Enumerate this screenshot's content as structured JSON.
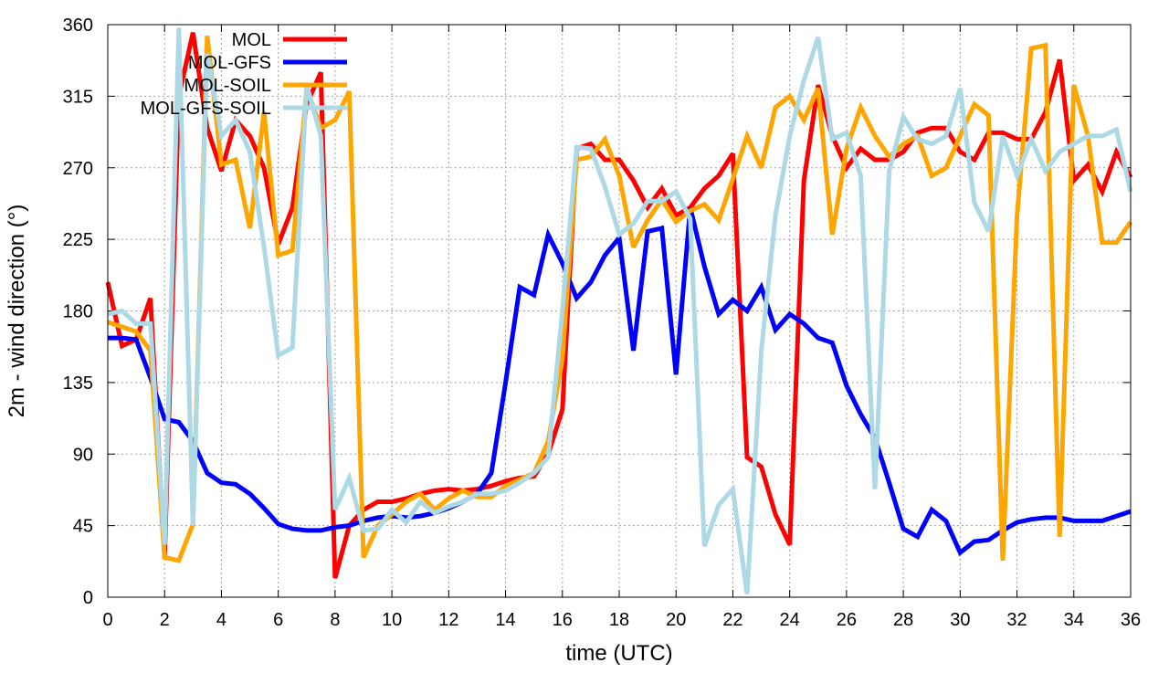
{
  "chart_data": {
    "type": "line",
    "title": "",
    "xlabel": "time (UTC)",
    "ylabel": "2m - wind direction (°)",
    "xlim": [
      0,
      36
    ],
    "ylim": [
      0,
      360
    ],
    "xticks": [
      0,
      2,
      4,
      6,
      8,
      10,
      12,
      14,
      16,
      18,
      20,
      22,
      24,
      26,
      28,
      30,
      32,
      34,
      36
    ],
    "yticks": [
      0,
      45,
      90,
      135,
      180,
      225,
      270,
      315,
      360
    ],
    "grid": true,
    "legend_position": "top-left",
    "series": [
      {
        "name": "MOL",
        "color": "#ff0000",
        "points": [
          [
            0,
            198
          ],
          [
            0.5,
            158
          ],
          [
            1,
            162
          ],
          [
            1.5,
            188
          ],
          [
            2,
            25
          ],
          [
            2.5,
            315
          ],
          [
            3,
            355
          ],
          [
            3.5,
            295
          ],
          [
            4,
            268
          ],
          [
            4.5,
            300
          ],
          [
            5,
            290
          ],
          [
            5.5,
            270
          ],
          [
            6,
            222
          ],
          [
            6.5,
            245
          ],
          [
            7,
            310
          ],
          [
            7.5,
            330
          ],
          [
            8,
            12
          ],
          [
            8.5,
            45
          ],
          [
            9,
            55
          ],
          [
            9.5,
            60
          ],
          [
            10,
            60
          ],
          [
            10.5,
            62
          ],
          [
            11,
            65
          ],
          [
            11.5,
            67
          ],
          [
            12,
            68
          ],
          [
            12.5,
            67
          ],
          [
            13,
            68
          ],
          [
            13.5,
            70
          ],
          [
            14,
            73
          ],
          [
            14.5,
            75
          ],
          [
            15,
            76
          ],
          [
            15.5,
            90
          ],
          [
            16,
            118
          ],
          [
            16.5,
            282
          ],
          [
            17,
            285
          ],
          [
            17.5,
            275
          ],
          [
            18,
            275
          ],
          [
            18.5,
            262
          ],
          [
            19,
            245
          ],
          [
            19.5,
            257
          ],
          [
            20,
            240
          ],
          [
            20.5,
            245
          ],
          [
            21,
            257
          ],
          [
            21.5,
            265
          ],
          [
            22,
            279
          ],
          [
            22.5,
            88
          ],
          [
            23,
            82
          ],
          [
            23.5,
            52
          ],
          [
            24,
            33
          ],
          [
            24.5,
            262
          ],
          [
            25,
            322
          ],
          [
            25.5,
            290
          ],
          [
            26,
            270
          ],
          [
            26.5,
            282
          ],
          [
            27,
            275
          ],
          [
            27.5,
            275
          ],
          [
            28,
            280
          ],
          [
            28.5,
            292
          ],
          [
            29,
            295
          ],
          [
            29.5,
            295
          ],
          [
            30,
            280
          ],
          [
            30.5,
            275
          ],
          [
            31,
            292
          ],
          [
            31.5,
            292
          ],
          [
            32,
            288
          ],
          [
            32.5,
            288
          ],
          [
            33,
            305
          ],
          [
            33.5,
            338
          ],
          [
            34,
            262
          ],
          [
            34.5,
            272
          ],
          [
            35,
            255
          ],
          [
            35.5,
            280
          ],
          [
            36,
            264
          ]
        ]
      },
      {
        "name": "MOL-GFS",
        "color": "#0000ff",
        "points": [
          [
            0,
            163
          ],
          [
            0.5,
            163
          ],
          [
            1,
            162
          ],
          [
            1.5,
            138
          ],
          [
            2,
            112
          ],
          [
            2.5,
            110
          ],
          [
            3,
            98
          ],
          [
            3.5,
            78
          ],
          [
            4,
            72
          ],
          [
            4.5,
            71
          ],
          [
            5,
            65
          ],
          [
            5.5,
            56
          ],
          [
            6,
            46
          ],
          [
            6.5,
            43
          ],
          [
            7,
            42
          ],
          [
            7.5,
            42
          ],
          [
            8,
            44
          ],
          [
            8.5,
            45
          ],
          [
            9,
            48
          ],
          [
            9.5,
            50
          ],
          [
            10,
            51
          ],
          [
            10.5,
            50
          ],
          [
            11,
            51
          ],
          [
            11.5,
            53
          ],
          [
            12,
            56
          ],
          [
            12.5,
            60
          ],
          [
            13,
            65
          ],
          [
            13.5,
            78
          ],
          [
            14,
            135
          ],
          [
            14.5,
            195
          ],
          [
            15,
            190
          ],
          [
            15.5,
            228
          ],
          [
            16,
            210
          ],
          [
            16.5,
            188
          ],
          [
            17,
            198
          ],
          [
            17.5,
            215
          ],
          [
            18,
            226
          ],
          [
            18.5,
            155
          ],
          [
            19,
            230
          ],
          [
            19.5,
            232
          ],
          [
            20,
            140
          ],
          [
            20.5,
            245
          ],
          [
            21,
            208
          ],
          [
            21.5,
            178
          ],
          [
            22,
            187
          ],
          [
            22.5,
            180
          ],
          [
            23,
            195
          ],
          [
            23.5,
            168
          ],
          [
            24,
            178
          ],
          [
            24.5,
            172
          ],
          [
            25,
            163
          ],
          [
            25.5,
            160
          ],
          [
            26,
            133
          ],
          [
            26.5,
            115
          ],
          [
            27,
            100
          ],
          [
            27.5,
            72
          ],
          [
            28,
            43
          ],
          [
            28.5,
            38
          ],
          [
            29,
            55
          ],
          [
            29.5,
            48
          ],
          [
            30,
            28
          ],
          [
            30.5,
            35
          ],
          [
            31,
            36
          ],
          [
            31.5,
            42
          ],
          [
            32,
            47
          ],
          [
            32.5,
            49
          ],
          [
            33,
            50
          ],
          [
            33.5,
            50
          ],
          [
            34,
            48
          ],
          [
            34.5,
            48
          ],
          [
            35,
            48
          ],
          [
            35.5,
            51
          ],
          [
            36,
            54
          ]
        ]
      },
      {
        "name": "MOL-SOIL",
        "color": "#ffa500",
        "points": [
          [
            0,
            173
          ],
          [
            0.5,
            170
          ],
          [
            1,
            167
          ],
          [
            1.5,
            155
          ],
          [
            2,
            25
          ],
          [
            2.5,
            23
          ],
          [
            3,
            46
          ],
          [
            3.5,
            353
          ],
          [
            4,
            272
          ],
          [
            4.5,
            275
          ],
          [
            5,
            232
          ],
          [
            5.5,
            305
          ],
          [
            6,
            215
          ],
          [
            6.5,
            218
          ],
          [
            7,
            320
          ],
          [
            7.5,
            295
          ],
          [
            8,
            300
          ],
          [
            8.5,
            318
          ],
          [
            9,
            25
          ],
          [
            9.5,
            45
          ],
          [
            10,
            52
          ],
          [
            10.5,
            60
          ],
          [
            11,
            65
          ],
          [
            11.5,
            55
          ],
          [
            12,
            62
          ],
          [
            12.5,
            67
          ],
          [
            13,
            63
          ],
          [
            13.5,
            63
          ],
          [
            14,
            70
          ],
          [
            14.5,
            74
          ],
          [
            15,
            78
          ],
          [
            15.5,
            98
          ],
          [
            16,
            150
          ],
          [
            16.5,
            275
          ],
          [
            17,
            277
          ],
          [
            17.5,
            288
          ],
          [
            18,
            265
          ],
          [
            18.5,
            220
          ],
          [
            19,
            237
          ],
          [
            19.5,
            250
          ],
          [
            20,
            236
          ],
          [
            20.5,
            243
          ],
          [
            21,
            247
          ],
          [
            21.5,
            237
          ],
          [
            22,
            263
          ],
          [
            22.5,
            290
          ],
          [
            23,
            270
          ],
          [
            23.5,
            308
          ],
          [
            24,
            315
          ],
          [
            24.5,
            300
          ],
          [
            25,
            320
          ],
          [
            25.5,
            228
          ],
          [
            26,
            282
          ],
          [
            26.5,
            308
          ],
          [
            27,
            290
          ],
          [
            27.5,
            277
          ],
          [
            28,
            285
          ],
          [
            28.5,
            290
          ],
          [
            29,
            265
          ],
          [
            29.5,
            270
          ],
          [
            30,
            290
          ],
          [
            30.5,
            310
          ],
          [
            31,
            303
          ],
          [
            31.5,
            23
          ],
          [
            32,
            240
          ],
          [
            32.5,
            345
          ],
          [
            33,
            347
          ],
          [
            33.5,
            38
          ],
          [
            34,
            322
          ],
          [
            34.5,
            290
          ],
          [
            35,
            223
          ],
          [
            35.5,
            223
          ],
          [
            36,
            236
          ]
        ]
      },
      {
        "name": "MOL-GFS-SOIL",
        "color": "#add8e6",
        "points": [
          [
            0,
            178
          ],
          [
            0.5,
            180
          ],
          [
            1,
            172
          ],
          [
            1.5,
            172
          ],
          [
            2,
            33
          ],
          [
            2.5,
            358
          ],
          [
            3,
            45
          ],
          [
            3.5,
            342
          ],
          [
            4,
            290
          ],
          [
            4.5,
            300
          ],
          [
            5,
            280
          ],
          [
            5.5,
            220
          ],
          [
            6,
            152
          ],
          [
            6.5,
            157
          ],
          [
            7,
            322
          ],
          [
            7.5,
            290
          ],
          [
            8,
            55
          ],
          [
            8.5,
            75
          ],
          [
            9,
            42
          ],
          [
            9.5,
            43
          ],
          [
            10,
            55
          ],
          [
            10.5,
            47
          ],
          [
            11,
            60
          ],
          [
            11.5,
            53
          ],
          [
            12,
            57
          ],
          [
            12.5,
            60
          ],
          [
            13,
            65
          ],
          [
            13.5,
            65
          ],
          [
            14,
            67
          ],
          [
            14.5,
            72
          ],
          [
            15,
            78
          ],
          [
            15.5,
            88
          ],
          [
            16,
            180
          ],
          [
            16.5,
            283
          ],
          [
            17,
            282
          ],
          [
            17.5,
            258
          ],
          [
            18,
            228
          ],
          [
            18.5,
            235
          ],
          [
            19,
            249
          ],
          [
            19.5,
            249
          ],
          [
            20,
            255
          ],
          [
            20.5,
            238
          ],
          [
            21,
            32
          ],
          [
            21.5,
            58
          ],
          [
            22,
            68
          ],
          [
            22.5,
            2
          ],
          [
            23,
            155
          ],
          [
            23.5,
            240
          ],
          [
            24,
            290
          ],
          [
            24.5,
            325
          ],
          [
            25,
            352
          ],
          [
            25.5,
            288
          ],
          [
            26,
            292
          ],
          [
            26.5,
            265
          ],
          [
            27,
            68
          ],
          [
            27.5,
            268
          ],
          [
            28,
            302
          ],
          [
            28.5,
            288
          ],
          [
            29,
            285
          ],
          [
            29.5,
            290
          ],
          [
            30,
            320
          ],
          [
            30.5,
            248
          ],
          [
            31,
            230
          ],
          [
            31.5,
            290
          ],
          [
            32,
            265
          ],
          [
            32.5,
            288
          ],
          [
            33,
            268
          ],
          [
            33.5,
            280
          ],
          [
            34,
            285
          ],
          [
            34.5,
            290
          ],
          [
            35,
            290
          ],
          [
            35.5,
            294
          ],
          [
            36,
            255
          ]
        ]
      }
    ]
  }
}
